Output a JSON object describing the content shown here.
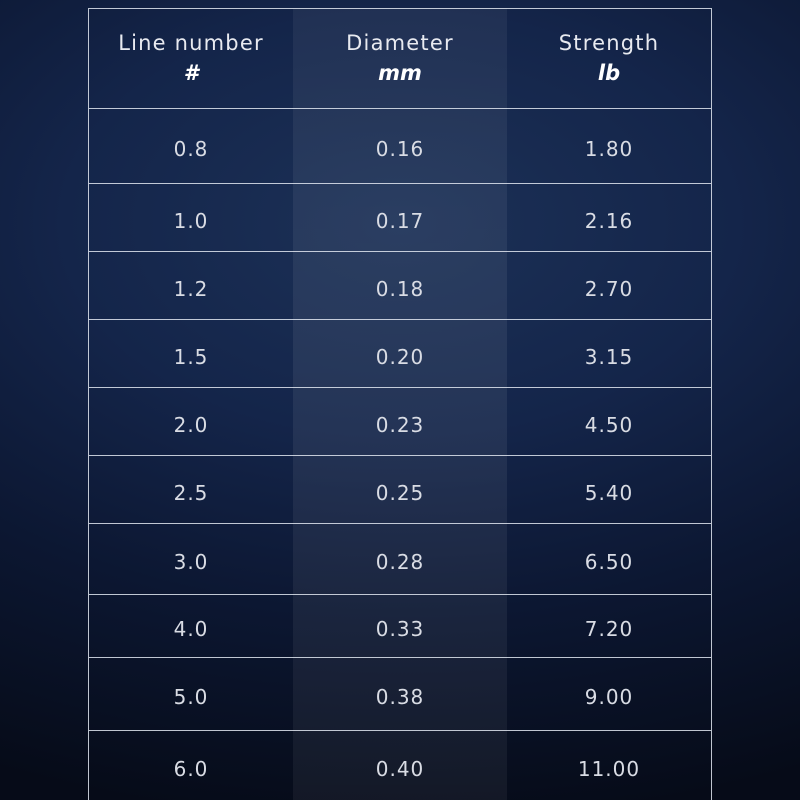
{
  "table": {
    "headers": [
      {
        "label": "Line number",
        "unit": "#"
      },
      {
        "label": "Diameter",
        "unit": "mm"
      },
      {
        "label": "Strength",
        "unit": "lb"
      }
    ],
    "rows": [
      [
        "0.8",
        "0.16",
        "1.80"
      ],
      [
        "1.0",
        "0.17",
        "2.16"
      ],
      [
        "1.2",
        "0.18",
        "2.70"
      ],
      [
        "1.5",
        "0.20",
        "3.15"
      ],
      [
        "2.0",
        "0.23",
        "4.50"
      ],
      [
        "2.5",
        "0.25",
        "5.40"
      ],
      [
        "3.0",
        "0.28",
        "6.50"
      ],
      [
        "4.0",
        "0.33",
        "7.20"
      ],
      [
        "5.0",
        "0.38",
        "9.00"
      ],
      [
        "6.0",
        "0.40",
        "11.00"
      ]
    ]
  },
  "colors": {
    "background": "#14254a",
    "grid_line": "#e1e6f0",
    "text": "#e6e8ee"
  }
}
